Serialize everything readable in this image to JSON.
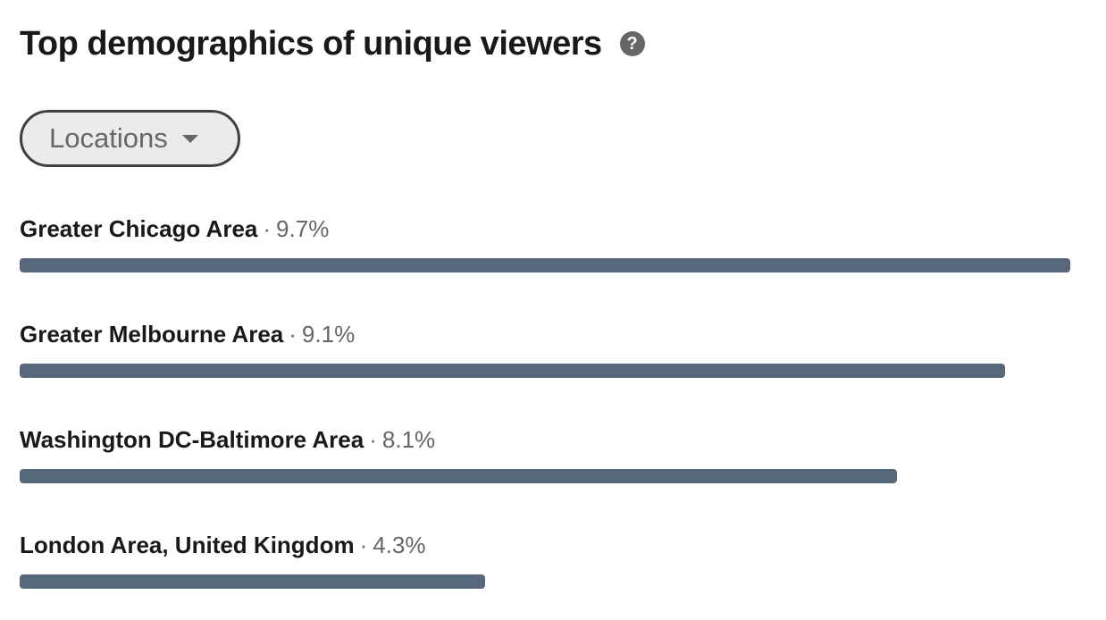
{
  "header": {
    "title": "Top demographics of unique viewers",
    "help_icon": "question-circle-icon",
    "help_glyph": "?"
  },
  "filter": {
    "label": "Locations",
    "icon": "caret-down-icon"
  },
  "colors": {
    "bar": "#56687a",
    "title": "#191919",
    "muted": "#666666",
    "filter_bg": "#ebebeb"
  },
  "locations": [
    {
      "name": "Greater Chicago Area",
      "separator": "·",
      "percent_text": "9.7%",
      "percent": 9.7
    },
    {
      "name": "Greater Melbourne Area",
      "separator": "·",
      "percent_text": "9.1%",
      "percent": 9.1
    },
    {
      "name": "Washington DC-Baltimore Area",
      "separator": "·",
      "percent_text": "8.1%",
      "percent": 8.1
    },
    {
      "name": "London Area, United Kingdom",
      "separator": "·",
      "percent_text": "4.3%",
      "percent": 4.3
    }
  ]
}
